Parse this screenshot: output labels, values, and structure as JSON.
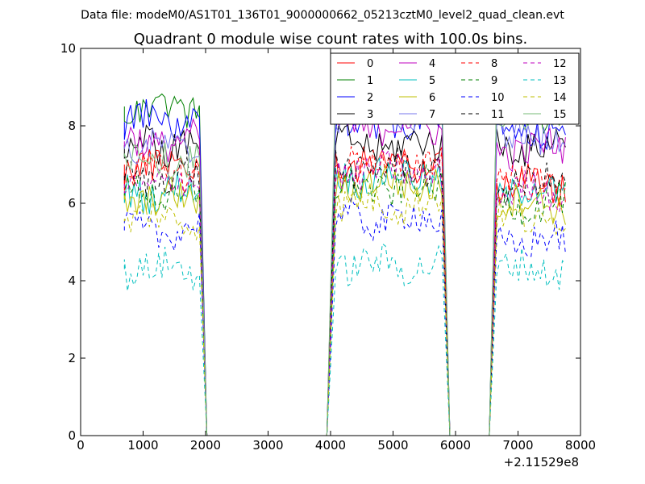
{
  "suptitle": "Data file: modeM0/AS1T01_136T01_9000000662_05213cztM0_level2_quad_clean.evt",
  "chart_data": {
    "type": "line",
    "title": "Quadrant 0 module wise count rates with 100.0s bins.",
    "xlabel": "",
    "ylabel": "",
    "xlim": [
      0,
      8000
    ],
    "ylim": [
      0,
      10
    ],
    "x_offset_label": "+2.11529e8",
    "x_ticks": [
      0,
      1000,
      2000,
      3000,
      4000,
      5000,
      6000,
      7000,
      8000
    ],
    "x_tick_labels": [
      "0",
      "1000",
      "2000",
      "3000",
      "4000",
      "5000",
      "6000",
      "7000",
      "8000"
    ],
    "y_ticks": [
      0,
      2,
      4,
      6,
      8,
      10
    ],
    "y_tick_labels": [
      "0",
      "2",
      "4",
      "6",
      "8",
      "10"
    ],
    "grid": false,
    "legend_location": "top-right",
    "legend_columns": 4,
    "segments": [
      {
        "start": 700,
        "end": 1900,
        "drop_to": 2020
      },
      {
        "start": 4080,
        "end": 5780,
        "rise_from": 3940,
        "drop_to": 5910
      },
      {
        "start": 6660,
        "end": 7740,
        "rise_from": 6540
      }
    ],
    "series": [
      {
        "name": "0",
        "color": "#ff0000",
        "dash": "solid",
        "levels": [
          7.0,
          7.05,
          6.5
        ]
      },
      {
        "name": "1",
        "color": "#008000",
        "dash": "solid",
        "levels": [
          8.5,
          8.6,
          8.4
        ]
      },
      {
        "name": "2",
        "color": "#0000ff",
        "dash": "solid",
        "levels": [
          8.1,
          8.1,
          7.8
        ]
      },
      {
        "name": "3",
        "color": "#000000",
        "dash": "solid",
        "levels": [
          7.5,
          7.5,
          7.5
        ]
      },
      {
        "name": "4",
        "color": "#bf00bf",
        "dash": "solid",
        "levels": [
          7.6,
          8.0,
          7.4
        ]
      },
      {
        "name": "5",
        "color": "#00bfbf",
        "dash": "solid",
        "levels": [
          6.3,
          6.7,
          6.3
        ]
      },
      {
        "name": "6",
        "color": "#bfbf00",
        "dash": "solid",
        "levels": [
          6.1,
          6.5,
          6.0
        ]
      },
      {
        "name": "7",
        "color": "#7777ee",
        "dash": "solid",
        "levels": [
          7.4,
          8.4,
          7.7
        ]
      },
      {
        "name": "8",
        "color": "#ff0000",
        "dash": "dashed",
        "levels": [
          6.8,
          7.0,
          6.6
        ]
      },
      {
        "name": "9",
        "color": "#008000",
        "dash": "dashed",
        "levels": [
          6.2,
          6.4,
          6.0
        ]
      },
      {
        "name": "10",
        "color": "#0000ff",
        "dash": "dashed",
        "levels": [
          5.3,
          5.6,
          5.0
        ]
      },
      {
        "name": "11",
        "color": "#000000",
        "dash": "dashed",
        "levels": [
          6.7,
          6.9,
          6.5
        ]
      },
      {
        "name": "12",
        "color": "#bf00bf",
        "dash": "dashed",
        "levels": [
          6.5,
          6.8,
          6.3
        ]
      },
      {
        "name": "13",
        "color": "#00bfbf",
        "dash": "dashed",
        "levels": [
          4.3,
          4.4,
          4.3
        ]
      },
      {
        "name": "14",
        "color": "#bfbf00",
        "dash": "dashed",
        "levels": [
          5.6,
          6.0,
          5.6
        ]
      },
      {
        "name": "15",
        "color": "#77bb77",
        "dash": "solid",
        "levels": [
          7.2,
          8.8,
          8.3
        ]
      }
    ]
  }
}
